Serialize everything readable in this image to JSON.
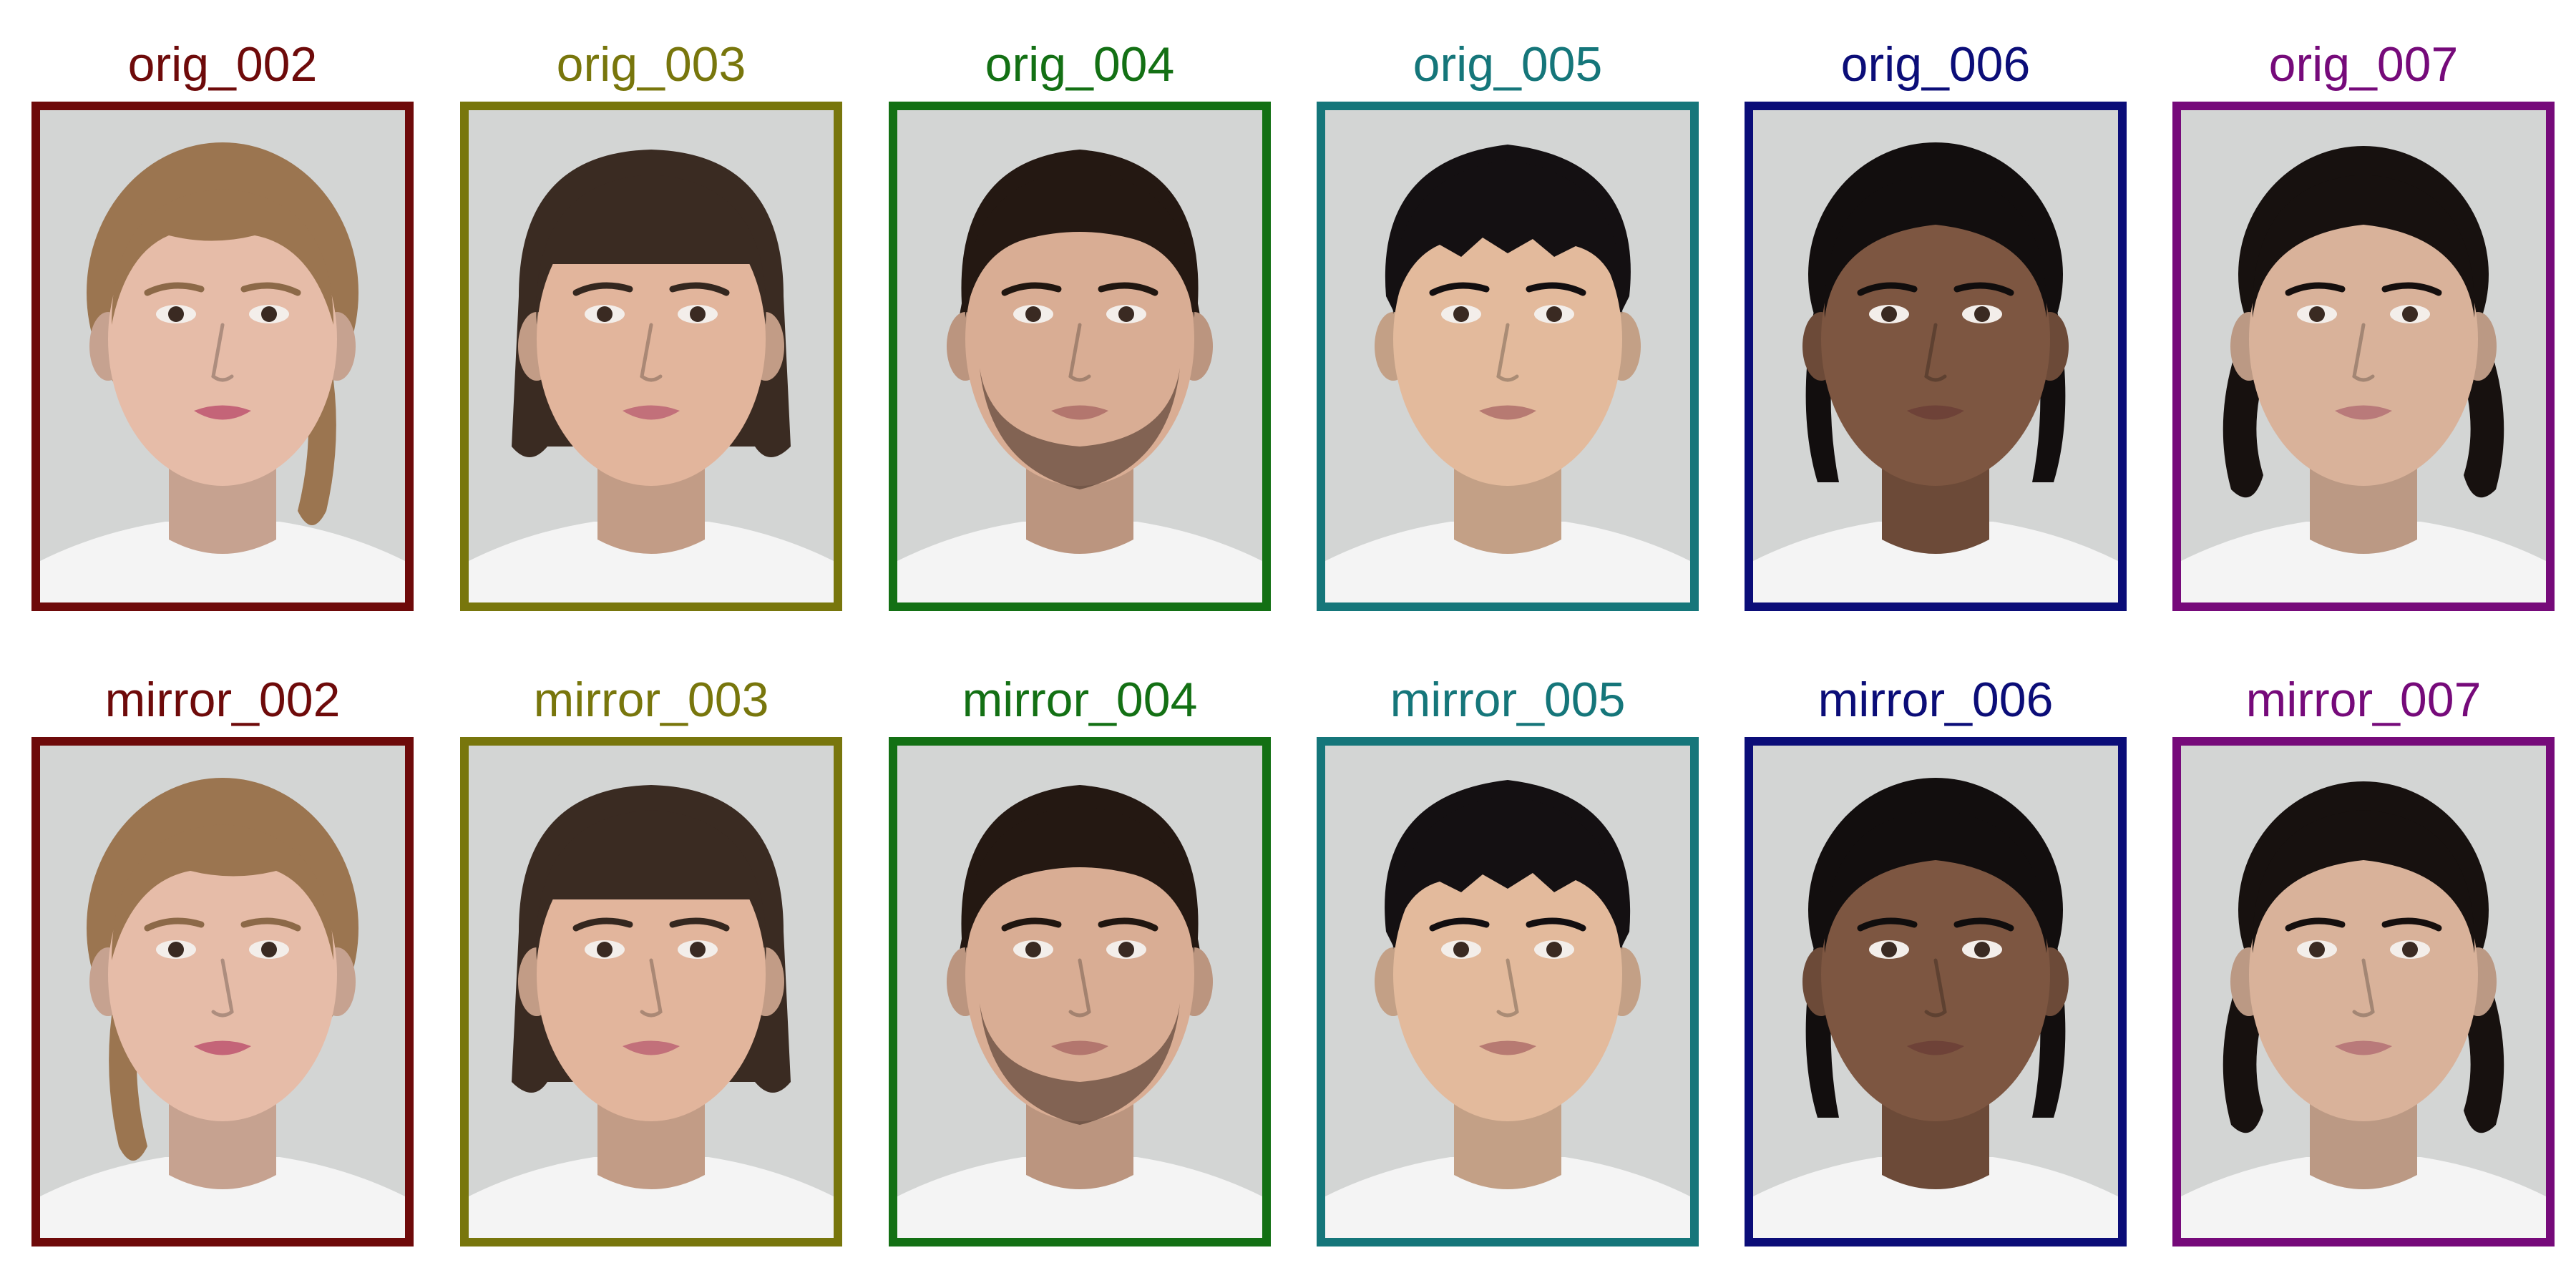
{
  "rows": [
    {
      "kind": "orig",
      "cells": [
        {
          "label": "orig_002",
          "color": "#6e0a0a",
          "face": {
            "skin": "#e6bca8",
            "hair": "#9b7550",
            "hair_style": "updo-light",
            "lips": "#c46478",
            "shirt": "#f4f4f4"
          }
        },
        {
          "label": "orig_003",
          "color": "#78760c",
          "face": {
            "skin": "#e2b59c",
            "hair": "#3a2b22",
            "hair_style": "bangs",
            "lips": "#c2707a",
            "shirt": "#f4f4f4"
          }
        },
        {
          "label": "orig_004",
          "color": "#137014",
          "face": {
            "skin": "#d9ad94",
            "hair": "#241812",
            "hair_style": "short-wavy",
            "lips": "#b3766e",
            "shirt": "#f4f4f4"
          }
        },
        {
          "label": "orig_005",
          "color": "#15767a",
          "face": {
            "skin": "#e3ba9c",
            "hair": "#141012",
            "hair_style": "short-spiky",
            "lips": "#b77a72",
            "shirt": "#f4f4f4"
          }
        },
        {
          "label": "orig_006",
          "color": "#0b0d78",
          "face": {
            "skin": "#7d5641",
            "hair": "#120e0e",
            "hair_style": "pulled-back",
            "lips": "#6e4238",
            "shirt": "#f4f4f4"
          }
        },
        {
          "label": "orig_007",
          "color": "#760a7a",
          "face": {
            "skin": "#d9b29a",
            "hair": "#17110f",
            "hair_style": "pulled-back-curly",
            "lips": "#b97a7a",
            "shirt": "#f4f4f4"
          }
        }
      ]
    },
    {
      "kind": "mirror",
      "cells": [
        {
          "label": "mirror_002",
          "color": "#6e0a0a",
          "face": {
            "skin": "#e6bca8",
            "hair": "#9b7550",
            "hair_style": "updo-light",
            "lips": "#c46478",
            "shirt": "#f4f4f4"
          }
        },
        {
          "label": "mirror_003",
          "color": "#78760c",
          "face": {
            "skin": "#e2b59c",
            "hair": "#3a2b22",
            "hair_style": "bangs",
            "lips": "#c2707a",
            "shirt": "#f4f4f4"
          }
        },
        {
          "label": "mirror_004",
          "color": "#137014",
          "face": {
            "skin": "#d9ad94",
            "hair": "#241812",
            "hair_style": "short-wavy",
            "lips": "#b3766e",
            "shirt": "#f4f4f4"
          }
        },
        {
          "label": "mirror_005",
          "color": "#15767a",
          "face": {
            "skin": "#e3ba9c",
            "hair": "#141012",
            "hair_style": "short-spiky",
            "lips": "#b77a72",
            "shirt": "#f4f4f4"
          }
        },
        {
          "label": "mirror_006",
          "color": "#0b0d78",
          "face": {
            "skin": "#7d5641",
            "hair": "#120e0e",
            "hair_style": "pulled-back",
            "lips": "#6e4238",
            "shirt": "#f4f4f4"
          }
        },
        {
          "label": "mirror_007",
          "color": "#760a7a",
          "face": {
            "skin": "#d9b29a",
            "hair": "#17110f",
            "hair_style": "pulled-back-curly",
            "lips": "#b97a7a",
            "shirt": "#f4f4f4"
          }
        }
      ]
    }
  ]
}
